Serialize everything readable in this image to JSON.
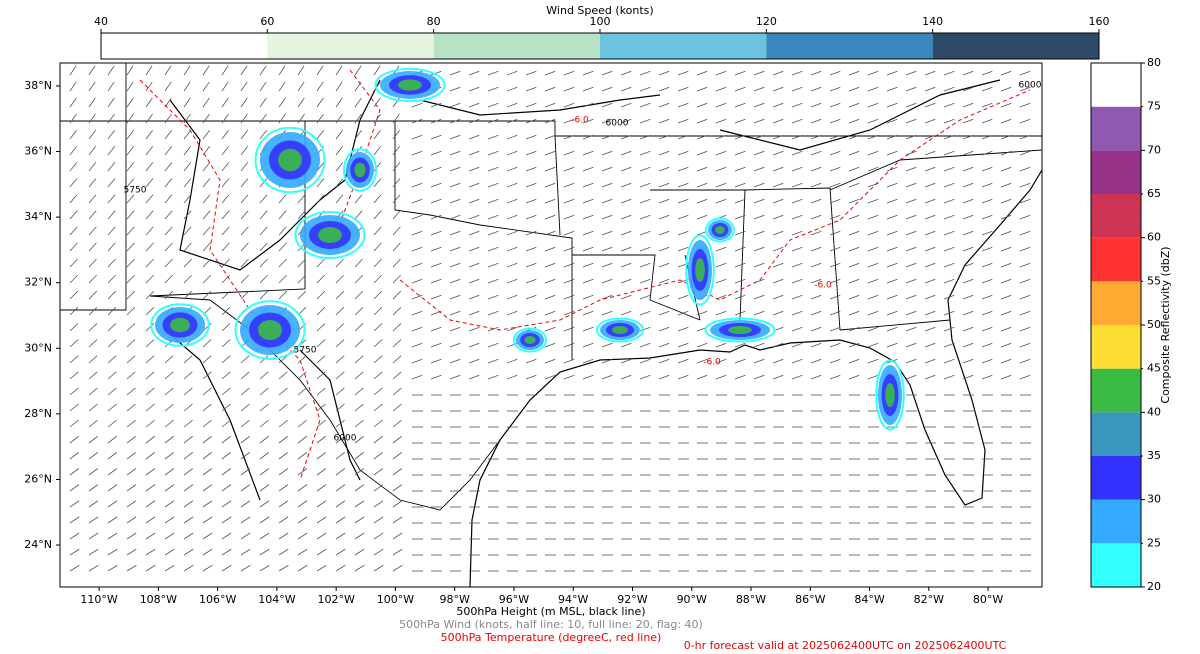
{
  "map": {
    "wind_colorbar": {
      "title": "Wind Speed (konts)",
      "lim": [
        40,
        160
      ],
      "ticks": [
        40,
        60,
        80,
        100,
        120,
        140,
        160
      ],
      "colors": [
        "#ffffff",
        "#e5f5e0",
        "#b7e2c4",
        "#6cc3dd",
        "#3a87bf",
        "#2f4a67"
      ]
    },
    "reflectivity_colorbar": {
      "title": "Composite Reflectivity (dbZ)",
      "lim": [
        20,
        80
      ],
      "ticks": [
        20,
        25,
        30,
        35,
        40,
        45,
        50,
        55,
        60,
        65,
        70,
        75,
        80
      ],
      "colors": [
        "#33ffff",
        "#33aaff",
        "#3333ff",
        "#3b96c0",
        "#3bbb44",
        "#fddc33",
        "#ffaa33",
        "#ff3333",
        "#cc3355",
        "#943388",
        "#9058b0",
        "#ffffff"
      ]
    },
    "xlim": [
      -111.32,
      -78.18
    ],
    "ylim": [
      22.72,
      38.7
    ],
    "lat_labels": [
      {
        "value": 24,
        "label": "24°N"
      },
      {
        "value": 26,
        "label": "26°N"
      },
      {
        "value": 28,
        "label": "28°N"
      },
      {
        "value": 30,
        "label": "30°N"
      },
      {
        "value": 32,
        "label": "32°N"
      },
      {
        "value": 34,
        "label": "34°N"
      },
      {
        "value": 36,
        "label": "36°N"
      },
      {
        "value": 38,
        "label": "38°N"
      }
    ],
    "lon_labels": [
      {
        "value": -110,
        "label": "110°W"
      },
      {
        "value": -108,
        "label": "108°W"
      },
      {
        "value": -106,
        "label": "106°W"
      },
      {
        "value": -104,
        "label": "104°W"
      },
      {
        "value": -102,
        "label": "102°W"
      },
      {
        "value": -100,
        "label": "100°W"
      },
      {
        "value": -98,
        "label": "98°W"
      },
      {
        "value": -96,
        "label": "96°W"
      },
      {
        "value": -94,
        "label": "94°W"
      },
      {
        "value": -92,
        "label": "92°W"
      },
      {
        "value": -90,
        "label": "90°W"
      },
      {
        "value": -88,
        "label": "88°W"
      },
      {
        "value": -86,
        "label": "86°W"
      },
      {
        "value": -84,
        "label": "84°W"
      },
      {
        "value": -82,
        "label": "82°W"
      },
      {
        "value": -80,
        "label": "80°W"
      }
    ],
    "contour_labels": [
      "6000",
      "-6.0",
      "5750",
      "6000",
      "-6.0",
      "6000",
      "-6.0",
      "5750"
    ],
    "captions": {
      "height": "500hPa Height (m MSL, black line)",
      "wind": "500hPa Wind (knots, half line: 10, full line: 20, flag: 40)",
      "temperature": "500hPa Temperature (degreeC, red line)",
      "forecast": "0-hr forecast valid at 2025062400UTC on 2025062400UTC"
    }
  }
}
